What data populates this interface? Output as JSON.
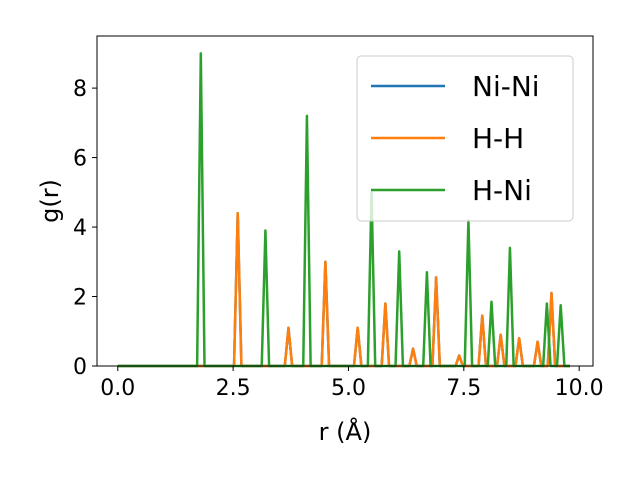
{
  "chart_data": {
    "type": "line",
    "xlabel": "r (Å)",
    "ylabel": "g(r)",
    "xlim": [
      -0.45,
      10.3
    ],
    "ylim": [
      0,
      9.5
    ],
    "x_ticks": [
      0.0,
      2.5,
      5.0,
      7.5,
      10.0
    ],
    "x_tick_labels": [
      "0.0",
      "2.5",
      "5.0",
      "7.5",
      "10.0"
    ],
    "y_ticks": [
      0,
      2,
      4,
      6,
      8
    ],
    "y_tick_labels": [
      "0",
      "2",
      "4",
      "6",
      "8"
    ],
    "legend_position": "top-right",
    "series": [
      {
        "name": "Ni-Ni",
        "color": "#1f77b4",
        "peaks": [
          [
            2.6,
            4.4
          ],
          [
            3.7,
            1.1
          ],
          [
            4.5,
            3.0
          ],
          [
            5.2,
            1.1
          ],
          [
            5.8,
            1.8
          ],
          [
            6.4,
            0.5
          ],
          [
            6.9,
            2.55
          ],
          [
            7.4,
            0.3
          ],
          [
            7.9,
            1.45
          ],
          [
            8.3,
            0.9
          ],
          [
            8.7,
            0.8
          ],
          [
            9.1,
            0.7
          ],
          [
            9.4,
            2.1
          ]
        ]
      },
      {
        "name": "H-H",
        "color": "#ff7f0e",
        "peaks": [
          [
            2.6,
            4.4
          ],
          [
            3.7,
            1.1
          ],
          [
            4.5,
            3.0
          ],
          [
            5.2,
            1.1
          ],
          [
            5.8,
            1.8
          ],
          [
            6.4,
            0.5
          ],
          [
            6.9,
            2.55
          ],
          [
            7.4,
            0.3
          ],
          [
            7.9,
            1.45
          ],
          [
            8.3,
            0.9
          ],
          [
            8.7,
            0.8
          ],
          [
            9.1,
            0.7
          ],
          [
            9.4,
            2.1
          ]
        ]
      },
      {
        "name": "H-Ni",
        "color": "#2ca02c",
        "peaks": [
          [
            1.8,
            9.0
          ],
          [
            3.2,
            3.9
          ],
          [
            4.1,
            7.2
          ],
          [
            5.5,
            5.0
          ],
          [
            6.1,
            3.3
          ],
          [
            6.7,
            2.7
          ],
          [
            7.6,
            4.2
          ],
          [
            8.1,
            1.85
          ],
          [
            8.5,
            3.4
          ],
          [
            9.3,
            1.8
          ],
          [
            9.6,
            1.75
          ]
        ]
      }
    ]
  }
}
